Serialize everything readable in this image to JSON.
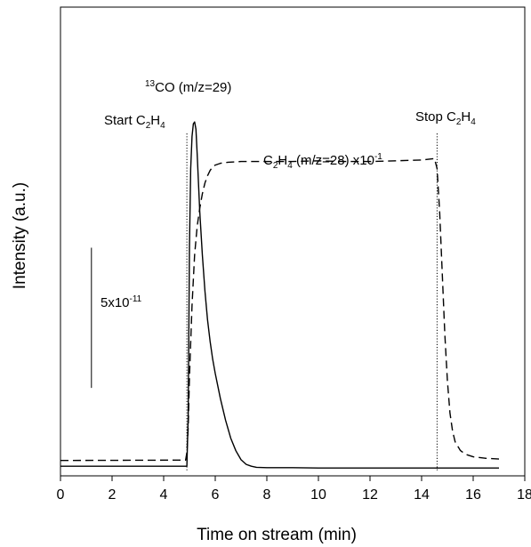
{
  "chart_data": {
    "type": "line",
    "xlabel": "Time on stream (min)",
    "ylabel": "Intensity (a.u.)",
    "xlim": [
      0,
      18
    ],
    "x_ticks": [
      0,
      2,
      4,
      6,
      8,
      10,
      12,
      14,
      16,
      18
    ],
    "ylim": [
      0,
      1
    ],
    "y_ticks_shown": false,
    "grid": false,
    "legend": "none",
    "series": [
      {
        "name": "13CO (m/z=29)",
        "style": "solid",
        "color": "#000000",
        "x": [
          0,
          4.9,
          4.95,
          5.0,
          5.05,
          5.1,
          5.15,
          5.2,
          5.25,
          5.3,
          5.4,
          5.5,
          5.6,
          5.7,
          5.8,
          5.9,
          6.0,
          6.2,
          6.4,
          6.6,
          6.8,
          7.0,
          7.2,
          7.4,
          7.6,
          8.0,
          9.0,
          10.0,
          12.0,
          14.0,
          14.6,
          15.0,
          16.0,
          17.0
        ],
        "y": [
          0.012,
          0.012,
          0.15,
          0.62,
          0.84,
          0.93,
          0.965,
          0.97,
          0.95,
          0.88,
          0.72,
          0.6,
          0.5,
          0.42,
          0.36,
          0.31,
          0.27,
          0.2,
          0.14,
          0.09,
          0.055,
          0.03,
          0.017,
          0.012,
          0.009,
          0.008,
          0.008,
          0.007,
          0.007,
          0.007,
          0.007,
          0.007,
          0.007,
          0.007
        ]
      },
      {
        "name": "C2H4 (m/z=28) x10-1",
        "style": "dashed",
        "color": "#000000",
        "x": [
          0,
          4.85,
          4.9,
          4.95,
          5.0,
          5.1,
          5.2,
          5.3,
          5.4,
          5.5,
          5.6,
          5.7,
          5.8,
          5.9,
          6.0,
          6.2,
          6.5,
          7.0,
          8.0,
          9.0,
          10.0,
          11.0,
          12.0,
          13.0,
          14.0,
          14.5,
          14.6,
          14.7,
          14.8,
          14.9,
          15.0,
          15.1,
          15.2,
          15.3,
          15.5,
          15.7,
          16.0,
          16.5,
          17.0
        ],
        "y": [
          0.028,
          0.029,
          0.05,
          0.12,
          0.26,
          0.46,
          0.6,
          0.68,
          0.73,
          0.77,
          0.8,
          0.82,
          0.835,
          0.845,
          0.85,
          0.855,
          0.858,
          0.86,
          0.86,
          0.86,
          0.862,
          0.86,
          0.86,
          0.862,
          0.864,
          0.868,
          0.84,
          0.72,
          0.55,
          0.38,
          0.25,
          0.16,
          0.11,
          0.08,
          0.056,
          0.045,
          0.038,
          0.034,
          0.032
        ]
      }
    ],
    "vertical_markers": [
      {
        "x": 4.9,
        "style": "dotted",
        "label_main": "Start C",
        "label_sub": "2",
        "label_main2": "H",
        "label_sub2": "4"
      },
      {
        "x": 14.6,
        "style": "dotted",
        "label_main": "Stop C",
        "label_sub": "2",
        "label_main2": "H",
        "label_sub2": "4"
      }
    ],
    "annotations": {
      "co_label_sup": "13",
      "co_label_main": "CO (m/z=29)",
      "c2h4_label": {
        "a": "C",
        "a_sub": "2",
        "b": "H",
        "b_sub": "4",
        "c": " (m/z=28) x10",
        "c_sup": "-1"
      }
    },
    "scale_bar": {
      "value_main": "5x10",
      "value_sup": "-11",
      "y_from": 0.23,
      "y_to": 0.62,
      "x": 1.2
    }
  }
}
